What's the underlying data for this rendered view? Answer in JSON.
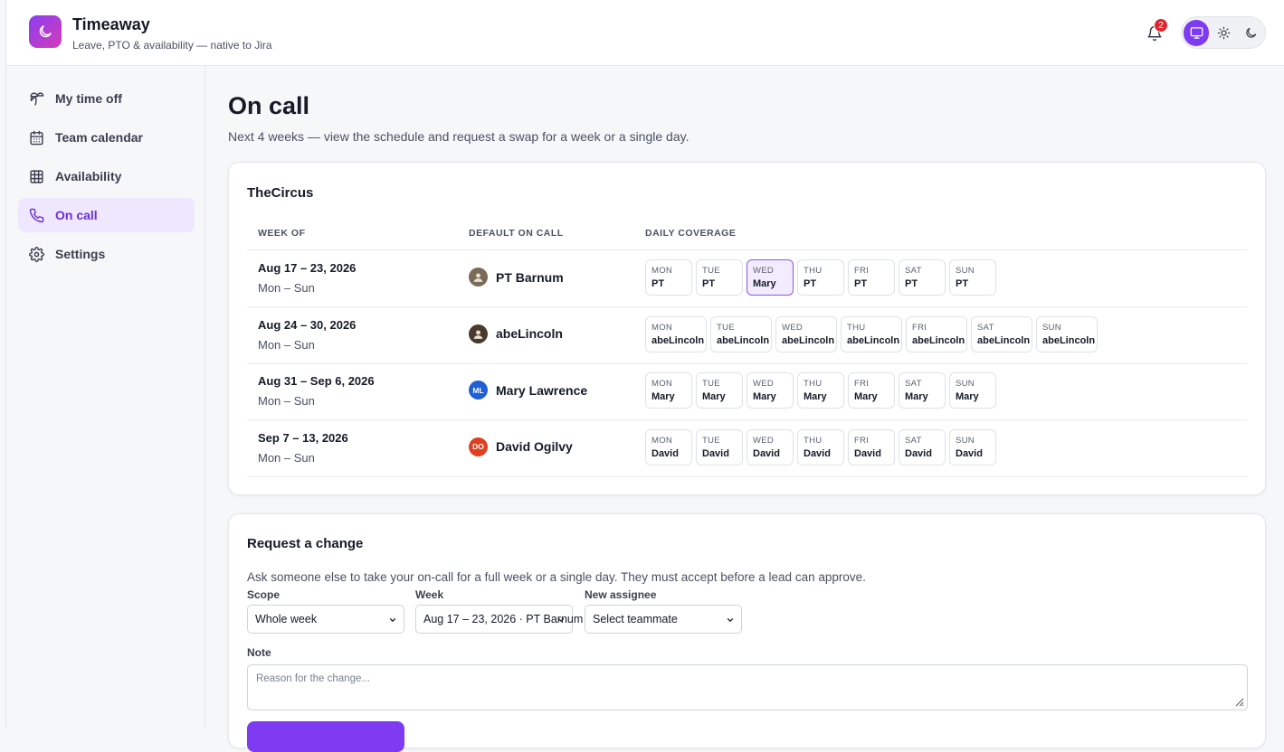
{
  "app": {
    "title": "Timeaway",
    "subtitle": "Leave, PTO & availability — native to Jira",
    "notification_count": "2"
  },
  "sidebar": {
    "items": [
      {
        "label": "My time off",
        "icon": "palm-tree-icon"
      },
      {
        "label": "Team calendar",
        "icon": "calendar-icon"
      },
      {
        "label": "Availability",
        "icon": "grid-icon"
      },
      {
        "label": "On call",
        "icon": "phone-icon",
        "active": true
      },
      {
        "label": "Settings",
        "icon": "gear-icon"
      }
    ]
  },
  "page": {
    "title": "On call",
    "subtitle": "Next 4 weeks — view the schedule and request a swap for a week or a single day."
  },
  "schedule": {
    "team": "TheCircus",
    "headers": {
      "week": "WEEK OF",
      "default": "DEFAULT ON CALL",
      "coverage": "DAILY COVERAGE"
    },
    "rows": [
      {
        "range": "Aug 17 – 23, 2026",
        "days": "Mon – Sun",
        "assignee": "PT Barnum",
        "avatar_initials": "",
        "avatar_color": "#7a6a58",
        "coverage": [
          {
            "day": "MON",
            "who": "PT"
          },
          {
            "day": "TUE",
            "who": "PT"
          },
          {
            "day": "WED",
            "who": "Mary"
          },
          {
            "day": "THU",
            "who": "PT"
          },
          {
            "day": "FRI",
            "who": "PT"
          },
          {
            "day": "SAT",
            "who": "PT"
          },
          {
            "day": "SUN",
            "who": "PT"
          }
        ]
      },
      {
        "range": "Aug 24 – 30, 2026",
        "days": "Mon – Sun",
        "assignee": "abeLincoln",
        "avatar_initials": "",
        "avatar_color": "#4a3a2e",
        "coverage": [
          {
            "day": "MON",
            "who": "abeLincoln"
          },
          {
            "day": "TUE",
            "who": "abeLincoln"
          },
          {
            "day": "WED",
            "who": "abeLincoln"
          },
          {
            "day": "THU",
            "who": "abeLincoln"
          },
          {
            "day": "FRI",
            "who": "abeLincoln"
          },
          {
            "day": "SAT",
            "who": "abeLincoln"
          },
          {
            "day": "SUN",
            "who": "abeLincoln"
          }
        ]
      },
      {
        "range": "Aug 31 – Sep 6, 2026",
        "days": "Mon – Sun",
        "assignee": "Mary Lawrence",
        "avatar_initials": "ML",
        "avatar_color": "#1f5fd6",
        "coverage": [
          {
            "day": "MON",
            "who": "Mary"
          },
          {
            "day": "TUE",
            "who": "Mary"
          },
          {
            "day": "WED",
            "who": "Mary"
          },
          {
            "day": "THU",
            "who": "Mary"
          },
          {
            "day": "FRI",
            "who": "Mary"
          },
          {
            "day": "SAT",
            "who": "Mary"
          },
          {
            "day": "SUN",
            "who": "Mary"
          }
        ]
      },
      {
        "range": "Sep 7 – 13, 2026",
        "days": "Mon – Sun",
        "assignee": "David Ogilvy",
        "avatar_initials": "DO",
        "avatar_color": "#e0401f",
        "coverage": [
          {
            "day": "MON",
            "who": "David"
          },
          {
            "day": "TUE",
            "who": "David"
          },
          {
            "day": "WED",
            "who": "David"
          },
          {
            "day": "THU",
            "who": "David"
          },
          {
            "day": "FRI",
            "who": "David"
          },
          {
            "day": "SAT",
            "who": "David"
          },
          {
            "day": "SUN",
            "who": "David"
          }
        ]
      }
    ]
  },
  "request": {
    "title": "Request a change",
    "description": "Ask someone else to take your on-call for a full week or a single day. They must accept before a lead can approve.",
    "scope_label": "Scope",
    "scope_value": "Whole week",
    "week_label": "Week",
    "week_value": "Aug 17 – 23, 2026 · PT Barnum",
    "assignee_label": "New assignee",
    "assignee_value": "Select teammate",
    "note_label": "Note",
    "note_placeholder": "Reason for the change..."
  },
  "colors": {
    "accent": "#7e3bf2",
    "highlight_bg": "#f3ecfe",
    "badge": "#e0262e"
  }
}
